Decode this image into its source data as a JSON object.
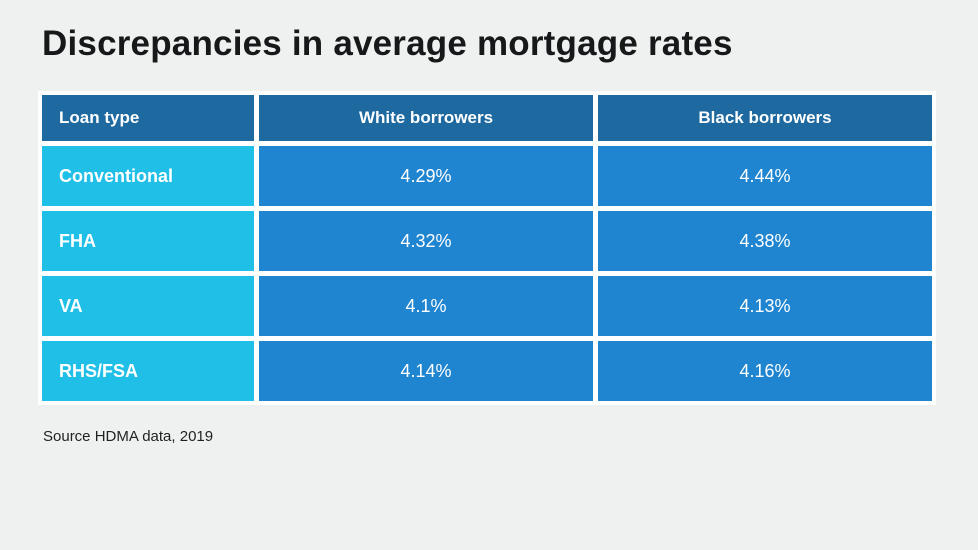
{
  "page": {
    "title": "Discrepancies in average mortgage rates",
    "source_note": "Source HDMA data, 2019"
  },
  "table": {
    "headers": [
      "Loan type",
      "White borrowers",
      "Black borrowers"
    ],
    "rows": [
      [
        "Conventional",
        "4.29%",
        "4.44%"
      ],
      [
        "FHA",
        "4.32%",
        "4.38%"
      ],
      [
        "VA",
        "4.1%",
        "4.13%"
      ],
      [
        "RHS/FSA",
        "4.14%",
        "4.16%"
      ]
    ]
  },
  "colors": {
    "background": "#eff1f1",
    "header_row_bg": "#1d69a0",
    "loan_type_column_bg": "#20bfe7",
    "value_cell_bg": "#2085d1",
    "cell_gutter": "#ffffff",
    "title_text": "#17181a",
    "table_text": "#ffffff"
  },
  "chart_data": {
    "type": "table",
    "title": "Discrepancies in average mortgage rates",
    "columns": [
      "Loan type",
      "White borrowers",
      "Black borrowers"
    ],
    "rows": [
      [
        "Conventional",
        "4.29%",
        "4.44%"
      ],
      [
        "FHA",
        "4.32%",
        "4.38%"
      ],
      [
        "VA",
        "4.1%",
        "4.13%"
      ],
      [
        "RHS/FSA",
        "4.14%",
        "4.16%"
      ]
    ],
    "series": [
      {
        "name": "White borrowers",
        "values": [
          4.29,
          4.32,
          4.1,
          4.14
        ]
      },
      {
        "name": "Black borrowers",
        "values": [
          4.44,
          4.38,
          4.13,
          4.16
        ]
      }
    ],
    "categories": [
      "Conventional",
      "FHA",
      "VA",
      "RHS/FSA"
    ],
    "value_unit": "%",
    "source": "Source HDMA data, 2019"
  }
}
